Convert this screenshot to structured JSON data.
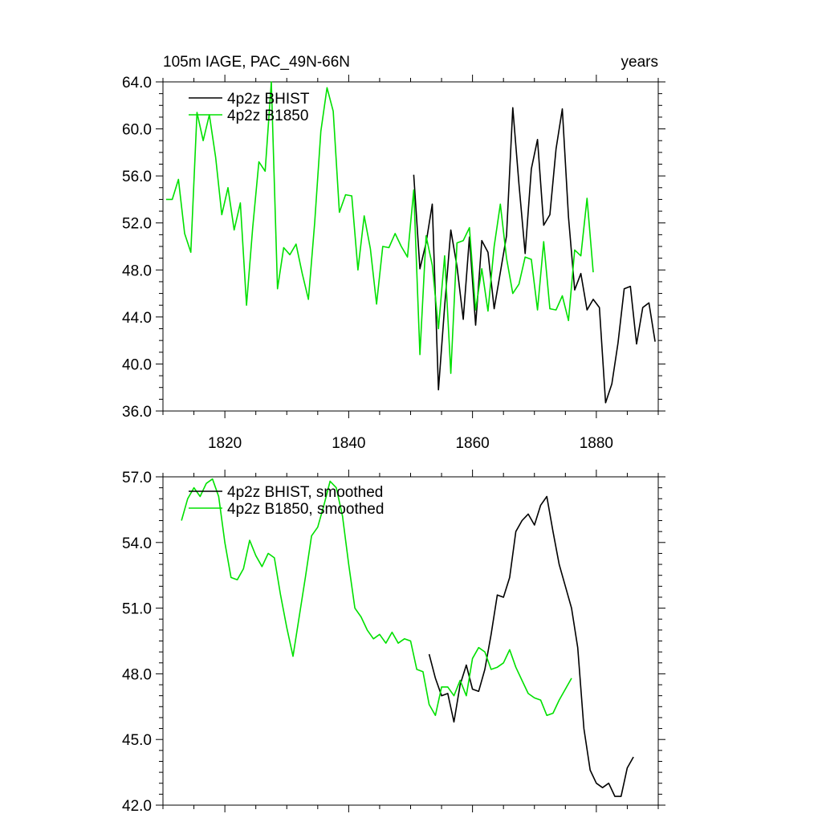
{
  "figure": {
    "title_left": "105m IAGE, PAC_49N-66N",
    "title_right": "years"
  },
  "colors": {
    "bhist": "#000000",
    "b1850": "#00e000"
  },
  "chart_data": [
    {
      "type": "line",
      "title": "105m IAGE, PAC_49N-66N",
      "subtitle": "years",
      "xlabel": "",
      "ylabel": "",
      "xlim": [
        1810,
        1890
      ],
      "ylim": [
        36,
        64
      ],
      "x_major_ticks": [
        1820,
        1840,
        1860,
        1880
      ],
      "x_tick_labels": [
        "1820",
        "1840",
        "1860",
        "1880"
      ],
      "y_major_ticks": [
        36,
        40,
        44,
        48,
        52,
        56,
        60,
        64
      ],
      "y_tick_labels": [
        "36.0",
        "40.0",
        "44.0",
        "48.0",
        "52.0",
        "56.0",
        "60.0",
        "64.0"
      ],
      "legend_position": "top-left",
      "series": [
        {
          "name": "4p2z BHIST",
          "color": "#000000",
          "x_start": 1850.5,
          "values": [
            56.1,
            48.1,
            50.3,
            53.6,
            37.8,
            44.9,
            51.4,
            48.3,
            43.8,
            50.8,
            43.3,
            50.5,
            49.5,
            44.7,
            47.8,
            50.9,
            61.8,
            55.3,
            49.4,
            56.6,
            59.1,
            51.8,
            52.7,
            58.3,
            61.7,
            52.5,
            46.3,
            47.7,
            44.6,
            45.5,
            44.8,
            36.7,
            38.3,
            41.8,
            46.4,
            46.6,
            41.7,
            44.8,
            45.2,
            41.9
          ]
        },
        {
          "name": "4p2z B1850",
          "color": "#00e000",
          "x_start": 1810.5,
          "values": [
            54.0,
            54.0,
            55.7,
            51.1,
            49.5,
            61.4,
            59.0,
            61.2,
            57.6,
            52.7,
            55.0,
            51.4,
            53.7,
            45.0,
            51.6,
            57.2,
            56.4,
            64.0,
            46.4,
            49.9,
            49.3,
            50.2,
            47.7,
            45.5,
            52.0,
            59.8,
            63.5,
            61.5,
            52.9,
            54.4,
            54.3,
            48.0,
            52.6,
            49.8,
            45.1,
            50.0,
            49.9,
            51.1,
            50.0,
            49.1,
            54.8,
            40.8,
            50.9,
            48.4,
            43.0,
            49.2,
            39.2,
            50.3,
            50.5,
            51.6,
            44.6,
            48.1,
            44.5,
            50.0,
            53.6,
            49.0,
            46.0,
            46.8,
            49.1,
            48.9,
            44.6,
            50.4,
            44.7,
            44.6,
            45.8,
            43.7,
            49.7,
            49.2,
            54.1,
            47.8
          ]
        }
      ]
    },
    {
      "type": "line",
      "title": "",
      "xlabel": "",
      "ylabel": "",
      "xlim": [
        1810,
        1890
      ],
      "ylim": [
        42,
        57
      ],
      "x_major_ticks": [
        1820,
        1840,
        1860,
        1880
      ],
      "x_tick_labels": [],
      "y_major_ticks": [
        42,
        45,
        48,
        51,
        54,
        57
      ],
      "y_tick_labels": [
        "42.0",
        "45.0",
        "48.0",
        "51.0",
        "54.0",
        "57.0"
      ],
      "legend_position": "top-left",
      "series": [
        {
          "name": "4p2z BHIST, smoothed",
          "color": "#000000",
          "x_start": 1853,
          "values": [
            48.9,
            47.8,
            47.0,
            47.1,
            45.8,
            47.5,
            48.4,
            47.3,
            47.2,
            48.2,
            49.8,
            51.6,
            51.5,
            52.4,
            54.5,
            55.0,
            55.3,
            54.8,
            55.7,
            56.1,
            54.5,
            53.0,
            52.0,
            51.0,
            49.2,
            45.5,
            43.6,
            43.0,
            42.8,
            43.0,
            42.4,
            42.4,
            43.7,
            44.2
          ]
        },
        {
          "name": "4p2z B1850, smoothed",
          "color": "#00e000",
          "x_start": 1813,
          "values": [
            55.0,
            56.0,
            56.5,
            56.1,
            56.7,
            56.9,
            56.1,
            54.0,
            52.4,
            52.3,
            52.8,
            54.1,
            53.4,
            52.9,
            53.5,
            53.3,
            51.6,
            50.1,
            48.8,
            50.6,
            52.4,
            54.3,
            54.7,
            55.7,
            56.8,
            56.5,
            55.2,
            53.0,
            51.0,
            50.6,
            50.0,
            49.6,
            49.8,
            49.4,
            49.9,
            49.4,
            49.6,
            49.5,
            48.2,
            48.1,
            46.6,
            46.1,
            47.4,
            47.4,
            47.0,
            47.7,
            47.0,
            48.7,
            49.2,
            49.0,
            48.2,
            48.3,
            48.5,
            49.1,
            48.3,
            47.7,
            47.1,
            46.9,
            46.8,
            46.1,
            46.2,
            46.8,
            47.3,
            47.8
          ]
        }
      ]
    }
  ]
}
